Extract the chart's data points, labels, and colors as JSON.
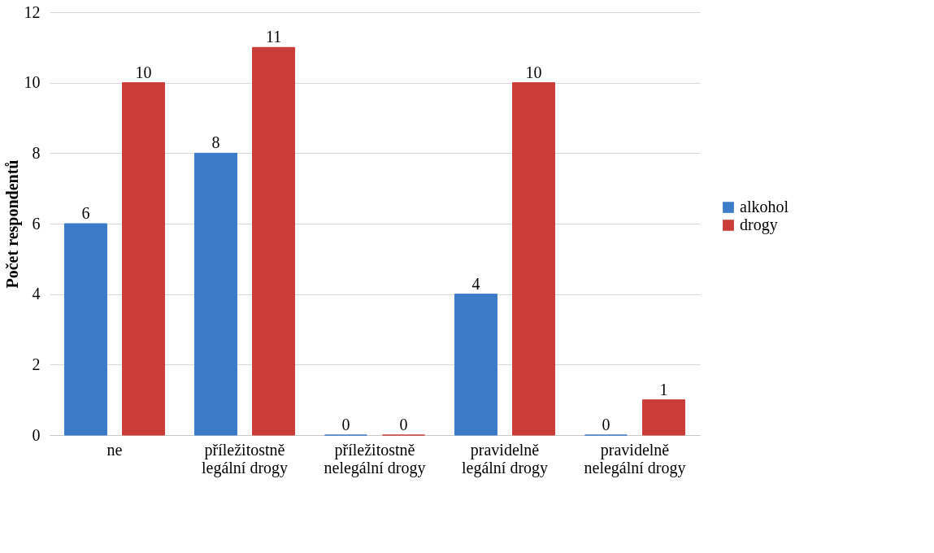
{
  "chart_data": {
    "type": "bar",
    "ylabel": "Počet respondentů",
    "categories": [
      "ne",
      "příležitostně\nlegální drogy",
      "příležitostně\nnelegální drogy",
      "pravidelně\nlegální drogy",
      "pravidelně\nnelegální drogy"
    ],
    "series": [
      {
        "name": "alkohol",
        "color": "#3b7bc8",
        "values": [
          6,
          8,
          0,
          4,
          0
        ]
      },
      {
        "name": "drogy",
        "color": "#c93c38",
        "values": [
          10,
          11,
          0,
          10,
          1
        ]
      }
    ],
    "ylim": [
      0,
      12
    ],
    "yticks": [
      0,
      2,
      4,
      6,
      8,
      10,
      12
    ],
    "grid": "y",
    "legend": "right",
    "data_labels": true
  }
}
